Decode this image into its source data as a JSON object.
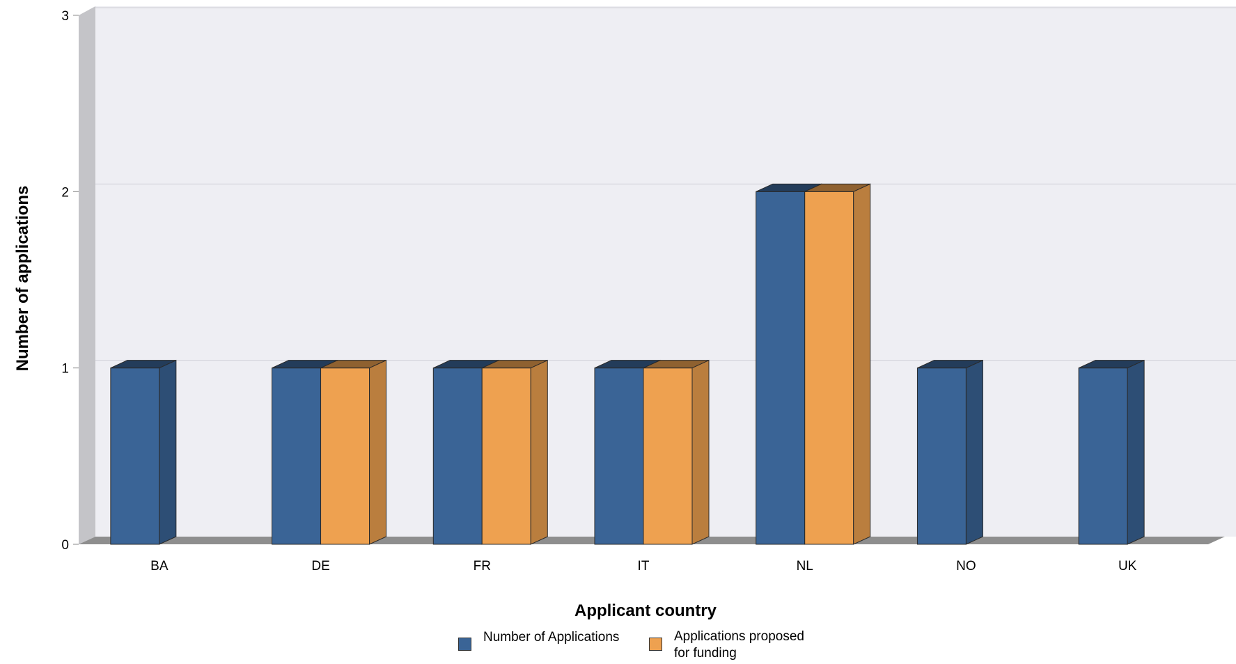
{
  "chart_data": {
    "type": "bar",
    "style": "3d",
    "categories": [
      "BA",
      "DE",
      "FR",
      "IT",
      "NL",
      "NO",
      "UK"
    ],
    "series": [
      {
        "name": "Number of Applications",
        "values": [
          1,
          1,
          1,
          1,
          2,
          1,
          1
        ],
        "color": "#3a6496"
      },
      {
        "name": "Applications proposed for funding",
        "values": [
          null,
          1,
          1,
          1,
          2,
          null,
          null
        ],
        "color": "#eea150"
      }
    ],
    "xlabel": "Applicant country",
    "ylabel": "Number of applications",
    "ylim": [
      0,
      3
    ],
    "yticks": [
      0,
      1,
      2,
      3
    ],
    "grid": true,
    "legend_position": "bottom"
  },
  "legend": {
    "items": [
      {
        "label_line1": "Number of Applications",
        "label_line2": "",
        "color": "#3a6496"
      },
      {
        "label_line1": "Applications proposed",
        "label_line2": "for funding",
        "color": "#eea150"
      }
    ]
  }
}
